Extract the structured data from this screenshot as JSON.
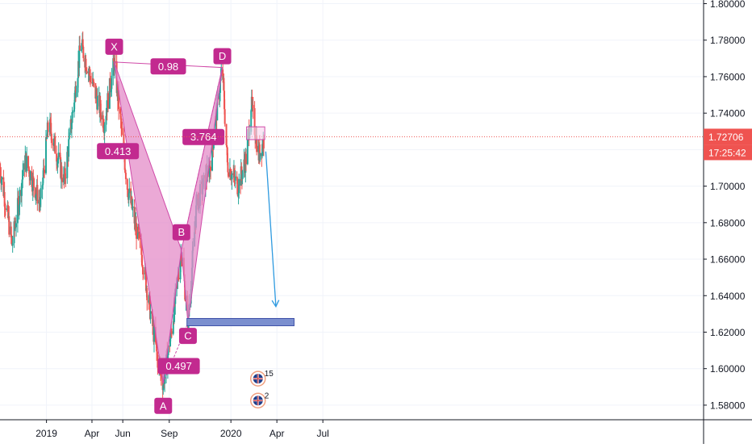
{
  "chart_data": {
    "type": "candlestick",
    "colors": {
      "up": "#26a69a",
      "down": "#ef5350",
      "pattern_fill": "#e48cc8",
      "pattern_stroke": "#d04aa8",
      "label_bg": "#c22a8f",
      "target_zone": "#7b8fcf",
      "arrow": "#2e9ae0",
      "price_tag": "#ef5350",
      "axis_text": "#131722",
      "grid": "#f0f3fa"
    },
    "x_axis": {
      "ticks": [
        {
          "label": "2019",
          "date": "2019-01-01"
        },
        {
          "label": "Apr",
          "date": "2019-04-01"
        },
        {
          "label": "Jun",
          "date": "2019-06-01"
        },
        {
          "label": "Sep",
          "date": "2019-09-01"
        },
        {
          "label": "2020",
          "date": "2020-01-01"
        },
        {
          "label": "Apr",
          "date": "2020-04-01"
        },
        {
          "label": "Jul",
          "date": "2020-07-01"
        }
      ]
    },
    "y_axis": {
      "range": [
        1.572,
        1.802
      ],
      "ticks": [
        "1.80000",
        "1.78000",
        "1.76000",
        "1.74000",
        "1.72000",
        "1.70000",
        "1.68000",
        "1.66000",
        "1.64000",
        "1.62000",
        "1.60000",
        "1.58000"
      ]
    },
    "price_tag": {
      "price": "1.72706",
      "countdown": "17:25:42",
      "value": 1.72706
    },
    "anchors": [
      {
        "date": "2018-10-01",
        "value": 1.71
      },
      {
        "date": "2018-10-25",
        "value": 1.668
      },
      {
        "date": "2018-11-20",
        "value": 1.715
      },
      {
        "date": "2018-12-20",
        "value": 1.69
      },
      {
        "date": "2019-01-05",
        "value": 1.735
      },
      {
        "date": "2019-02-05",
        "value": 1.702
      },
      {
        "date": "2019-03-10",
        "value": 1.778
      },
      {
        "date": "2019-04-01",
        "value": 1.757
      },
      {
        "date": "2019-04-25",
        "value": 1.735
      },
      {
        "date": "2019-05-15",
        "value": 1.768
      },
      {
        "date": "2019-06-10",
        "value": 1.7
      },
      {
        "date": "2019-07-10",
        "value": 1.66
      },
      {
        "date": "2019-08-10",
        "value": 1.603
      },
      {
        "date": "2019-08-20",
        "value": 1.592
      },
      {
        "date": "2019-09-05",
        "value": 1.62
      },
      {
        "date": "2019-09-25",
        "value": 1.665
      },
      {
        "date": "2019-10-08",
        "value": 1.625
      },
      {
        "date": "2019-10-25",
        "value": 1.69
      },
      {
        "date": "2019-11-20",
        "value": 1.71
      },
      {
        "date": "2019-12-15",
        "value": 1.765
      },
      {
        "date": "2019-12-25",
        "value": 1.712
      },
      {
        "date": "2020-01-15",
        "value": 1.7
      },
      {
        "date": "2020-02-01",
        "value": 1.716
      },
      {
        "date": "2020-02-10",
        "value": 1.745
      },
      {
        "date": "2020-02-25",
        "value": 1.717
      },
      {
        "date": "2020-03-08",
        "value": 1.727
      }
    ],
    "pattern": {
      "points": [
        {
          "label": "X",
          "date": "2019-05-15",
          "value": 1.768
        },
        {
          "label": "A",
          "date": "2019-08-20",
          "value": 1.592
        },
        {
          "label": "B",
          "date": "2019-09-25",
          "value": 1.665
        },
        {
          "label": "C",
          "date": "2019-10-08",
          "value": 1.625
        },
        {
          "label": "D",
          "date": "2019-12-15",
          "value": 1.765
        }
      ],
      "ratios": [
        "0.98",
        "0.413",
        "0.497",
        "3.764"
      ]
    },
    "target_zone": {
      "start": "2019-10-06",
      "end": "2020-05-05",
      "low": 1.6235,
      "high": 1.6275
    },
    "entry_zone": {
      "start": "2020-02-01",
      "end": "2020-03-08",
      "low": 1.7255,
      "high": 1.7325
    },
    "forecast_arrow": {
      "from_date": "2020-03-10",
      "from_value": 1.719,
      "to_date": "2020-03-30",
      "to_value": 1.634
    },
    "event_markers": [
      {
        "count": "15",
        "date": "2020-02-22",
        "value": 1.5945
      },
      {
        "count": "2",
        "date": "2020-02-22",
        "value": 1.5825
      }
    ]
  }
}
